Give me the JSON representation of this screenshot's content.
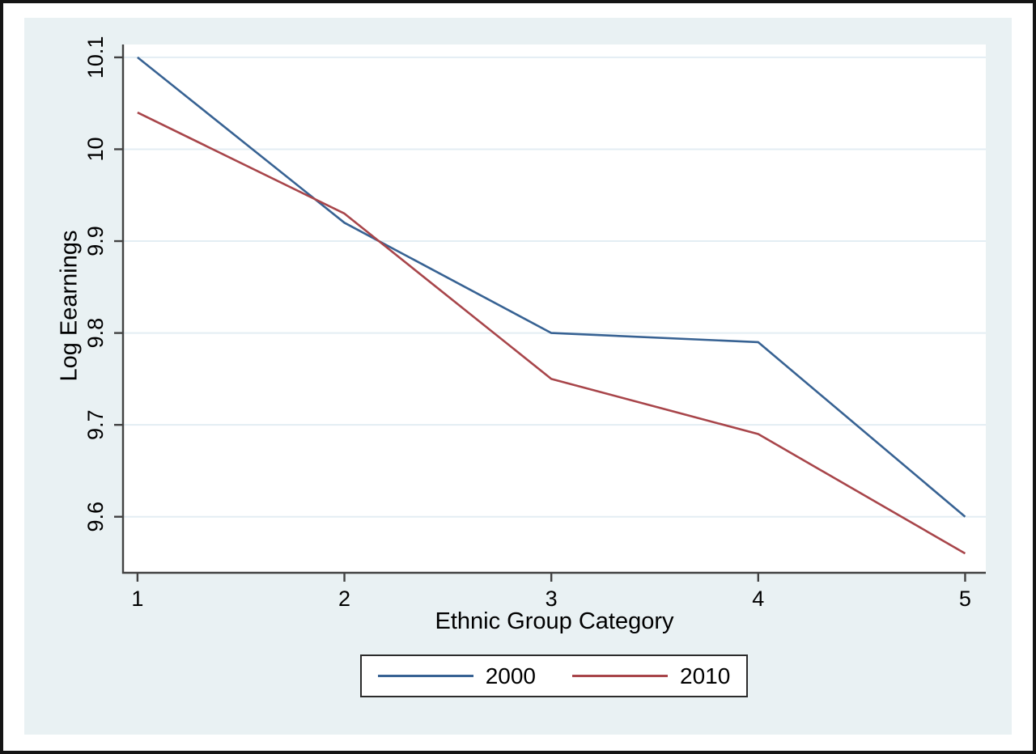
{
  "figure": {
    "background": "#ffffff",
    "frame_color": "#141414",
    "panel_color": "#e9f1f3",
    "plot_bg": "#ffffff",
    "grid_color": "#e3edf3",
    "axis_color": "#424242",
    "text_color": "#000000",
    "legend_border_color": "#2b2b2b"
  },
  "chart_data": {
    "type": "line",
    "title": "",
    "xlabel": "Ethnic Group Category",
    "ylabel": "Log Eearnings",
    "x": [
      1,
      2,
      3,
      4,
      5
    ],
    "series": [
      {
        "name": "2000",
        "color": "#376293",
        "values": [
          10.1,
          9.92,
          9.8,
          9.79,
          9.6
        ]
      },
      {
        "name": "2010",
        "color": "#a8454a",
        "values": [
          10.04,
          9.93,
          9.75,
          9.69,
          9.56
        ]
      }
    ],
    "xlim": [
      0.93,
      5.1
    ],
    "ylim": [
      9.539,
      10.114
    ],
    "x_ticks": {
      "values": [
        1,
        2,
        3,
        4,
        5
      ],
      "labels": [
        "1",
        "2",
        "3",
        "4",
        "5"
      ]
    },
    "y_ticks": {
      "values": [
        10.1,
        10,
        9.9,
        9.8,
        9.7,
        9.6
      ],
      "labels": [
        "10.1",
        "10",
        "9.9",
        "9.8",
        "9.7",
        "9.6"
      ]
    },
    "grid": "horizontal",
    "legend_position": "bottom-center",
    "tick_font_size": 27
  }
}
